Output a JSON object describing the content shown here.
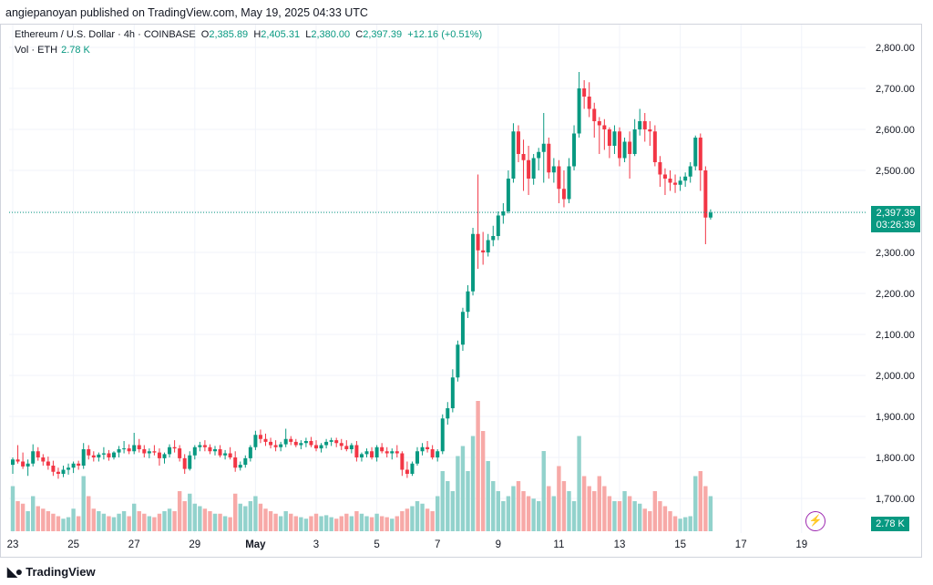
{
  "header": {
    "published_line": "angiepanoyan published on TradingView.com, May 19, 2025 04:33 UTC"
  },
  "legend": {
    "symbol": "Ethereum / U.S. Dollar · 4h · COINBASE",
    "o_label": "O",
    "o_value": "2,385.89",
    "h_label": "H",
    "h_value": "2,405.31",
    "l_label": "L",
    "l_value": "2,380.00",
    "c_label": "C",
    "c_value": "2,397.39",
    "change": "+12.16 (+0.51%)",
    "vol_label": "Vol · ETH",
    "vol_value": "2.78 K"
  },
  "price_tag": {
    "price": "2,397.39",
    "countdown": "03:26:39"
  },
  "volume_tag": "2.78 K",
  "footer": {
    "brand": "TradingView"
  },
  "colors": {
    "up": "#089981",
    "down": "#f23645",
    "vol_up": "#92d2cc",
    "vol_down": "#f7a9a7",
    "grid": "#f0f3fa"
  },
  "chart_data": {
    "type": "candlestick",
    "timeframe": "4h",
    "ylim": [
      1650,
      2850
    ],
    "y_ticks": [
      "2,800.00",
      "2,700.00",
      "2,600.00",
      "2,500.00",
      "2,400.00",
      "2,300.00",
      "2,200.00",
      "2,100.00",
      "2,000.00",
      "1,900.00",
      "1,800.00",
      "1,700.00"
    ],
    "y_tick_values": [
      2800,
      2700,
      2600,
      2500,
      2400,
      2300,
      2200,
      2100,
      2000,
      1900,
      1800,
      1700
    ],
    "x_ticks": [
      {
        "label": "23",
        "index": 0
      },
      {
        "label": "25",
        "index": 12
      },
      {
        "label": "27",
        "index": 24
      },
      {
        "label": "29",
        "index": 36
      },
      {
        "label": "May",
        "index": 48,
        "bold": true
      },
      {
        "label": "3",
        "index": 60
      },
      {
        "label": "5",
        "index": 72
      },
      {
        "label": "7",
        "index": 84
      },
      {
        "label": "9",
        "index": 96
      },
      {
        "label": "11",
        "index": 108
      },
      {
        "label": "13",
        "index": 120
      },
      {
        "label": "15",
        "index": 132
      },
      {
        "label": "17",
        "index": 144
      },
      {
        "label": "19",
        "index": 156
      }
    ],
    "last_price": 2397.39,
    "candles": [
      [
        1782,
        1800,
        1760,
        1795,
        90
      ],
      [
        1795,
        1830,
        1785,
        1790,
        60
      ],
      [
        1790,
        1812,
        1772,
        1778,
        55
      ],
      [
        1778,
        1795,
        1755,
        1785,
        40
      ],
      [
        1785,
        1832,
        1778,
        1815,
        70
      ],
      [
        1815,
        1825,
        1792,
        1800,
        50
      ],
      [
        1800,
        1808,
        1780,
        1790,
        45
      ],
      [
        1790,
        1802,
        1770,
        1780,
        40
      ],
      [
        1780,
        1792,
        1755,
        1765,
        35
      ],
      [
        1765,
        1775,
        1748,
        1760,
        30
      ],
      [
        1760,
        1780,
        1752,
        1770,
        25
      ],
      [
        1770,
        1785,
        1758,
        1775,
        28
      ],
      [
        1775,
        1790,
        1762,
        1785,
        45
      ],
      [
        1785,
        1792,
        1770,
        1780,
        30
      ],
      [
        1780,
        1835,
        1772,
        1820,
        110
      ],
      [
        1820,
        1830,
        1795,
        1805,
        70
      ],
      [
        1805,
        1815,
        1790,
        1800,
        45
      ],
      [
        1800,
        1812,
        1790,
        1807,
        40
      ],
      [
        1807,
        1825,
        1795,
        1810,
        35
      ],
      [
        1810,
        1818,
        1792,
        1800,
        30
      ],
      [
        1800,
        1815,
        1795,
        1812,
        28
      ],
      [
        1812,
        1828,
        1800,
        1820,
        35
      ],
      [
        1820,
        1840,
        1810,
        1822,
        40
      ],
      [
        1822,
        1832,
        1808,
        1815,
        30
      ],
      [
        1815,
        1860,
        1808,
        1830,
        55
      ],
      [
        1830,
        1845,
        1812,
        1820,
        40
      ],
      [
        1820,
        1830,
        1800,
        1810,
        35
      ],
      [
        1810,
        1822,
        1798,
        1815,
        30
      ],
      [
        1815,
        1830,
        1805,
        1812,
        28
      ],
      [
        1812,
        1822,
        1780,
        1798,
        35
      ],
      [
        1798,
        1812,
        1785,
        1808,
        40
      ],
      [
        1808,
        1832,
        1800,
        1825,
        45
      ],
      [
        1825,
        1842,
        1812,
        1822,
        40
      ],
      [
        1822,
        1830,
        1790,
        1798,
        80
      ],
      [
        1798,
        1808,
        1760,
        1772,
        60
      ],
      [
        1772,
        1815,
        1768,
        1805,
        75
      ],
      [
        1805,
        1830,
        1795,
        1825,
        55
      ],
      [
        1825,
        1838,
        1815,
        1830,
        50
      ],
      [
        1830,
        1842,
        1815,
        1825,
        45
      ],
      [
        1825,
        1832,
        1808,
        1815,
        40
      ],
      [
        1815,
        1828,
        1805,
        1820,
        35
      ],
      [
        1820,
        1830,
        1800,
        1805,
        35
      ],
      [
        1805,
        1818,
        1795,
        1810,
        30
      ],
      [
        1810,
        1825,
        1795,
        1800,
        28
      ],
      [
        1800,
        1815,
        1765,
        1775,
        75
      ],
      [
        1775,
        1790,
        1768,
        1782,
        55
      ],
      [
        1782,
        1805,
        1775,
        1798,
        50
      ],
      [
        1798,
        1830,
        1790,
        1825,
        60
      ],
      [
        1825,
        1865,
        1818,
        1855,
        70
      ],
      [
        1855,
        1868,
        1835,
        1845,
        55
      ],
      [
        1845,
        1858,
        1828,
        1838,
        45
      ],
      [
        1838,
        1848,
        1822,
        1830,
        40
      ],
      [
        1830,
        1842,
        1815,
        1825,
        35
      ],
      [
        1825,
        1838,
        1815,
        1832,
        30
      ],
      [
        1832,
        1870,
        1825,
        1845,
        40
      ],
      [
        1845,
        1852,
        1830,
        1838,
        35
      ],
      [
        1838,
        1845,
        1825,
        1830,
        30
      ],
      [
        1830,
        1842,
        1820,
        1835,
        28
      ],
      [
        1835,
        1848,
        1825,
        1840,
        25
      ],
      [
        1840,
        1850,
        1825,
        1830,
        30
      ],
      [
        1830,
        1842,
        1815,
        1822,
        35
      ],
      [
        1822,
        1835,
        1812,
        1830,
        30
      ],
      [
        1830,
        1845,
        1822,
        1838,
        32
      ],
      [
        1838,
        1848,
        1828,
        1842,
        28
      ],
      [
        1842,
        1848,
        1825,
        1835,
        25
      ],
      [
        1835,
        1845,
        1818,
        1828,
        30
      ],
      [
        1828,
        1842,
        1815,
        1820,
        35
      ],
      [
        1820,
        1835,
        1810,
        1830,
        30
      ],
      [
        1830,
        1840,
        1790,
        1800,
        40
      ],
      [
        1800,
        1812,
        1790,
        1808,
        35
      ],
      [
        1808,
        1822,
        1800,
        1815,
        30
      ],
      [
        1815,
        1825,
        1795,
        1800,
        28
      ],
      [
        1800,
        1830,
        1790,
        1825,
        35
      ],
      [
        1825,
        1835,
        1810,
        1815,
        30
      ],
      [
        1815,
        1825,
        1800,
        1810,
        28
      ],
      [
        1810,
        1822,
        1795,
        1815,
        25
      ],
      [
        1815,
        1830,
        1800,
        1810,
        30
      ],
      [
        1810,
        1815,
        1755,
        1770,
        40
      ],
      [
        1770,
        1790,
        1750,
        1760,
        45
      ],
      [
        1760,
        1790,
        1755,
        1785,
        50
      ],
      [
        1785,
        1825,
        1780,
        1815,
        60
      ],
      [
        1815,
        1835,
        1805,
        1825,
        55
      ],
      [
        1825,
        1840,
        1812,
        1820,
        45
      ],
      [
        1820,
        1830,
        1795,
        1800,
        40
      ],
      [
        1800,
        1820,
        1790,
        1815,
        70
      ],
      [
        1815,
        1905,
        1808,
        1895,
        120
      ],
      [
        1895,
        1935,
        1880,
        1920,
        100
      ],
      [
        1920,
        2015,
        1910,
        1995,
        80
      ],
      [
        1995,
        2085,
        1985,
        2075,
        150
      ],
      [
        2075,
        2165,
        2060,
        2155,
        170
      ],
      [
        2155,
        2220,
        2140,
        2205,
        120
      ],
      [
        2205,
        2360,
        2195,
        2345,
        190
      ],
      [
        2345,
        2490,
        2260,
        2305,
        260
      ],
      [
        2305,
        2350,
        2270,
        2300,
        200
      ],
      [
        2300,
        2345,
        2290,
        2330,
        140
      ],
      [
        2330,
        2365,
        2315,
        2340,
        100
      ],
      [
        2340,
        2400,
        2330,
        2390,
        80
      ],
      [
        2390,
        2420,
        2370,
        2400,
        60
      ],
      [
        2400,
        2500,
        2395,
        2480,
        70
      ],
      [
        2480,
        2615,
        2470,
        2595,
        90
      ],
      [
        2595,
        2610,
        2520,
        2540,
        100
      ],
      [
        2540,
        2575,
        2450,
        2525,
        80
      ],
      [
        2525,
        2560,
        2440,
        2480,
        70
      ],
      [
        2480,
        2540,
        2465,
        2530,
        65
      ],
      [
        2530,
        2555,
        2500,
        2545,
        60
      ],
      [
        2545,
        2640,
        2470,
        2565,
        160
      ],
      [
        2565,
        2580,
        2480,
        2495,
        90
      ],
      [
        2495,
        2530,
        2470,
        2510,
        70
      ],
      [
        2510,
        2525,
        2420,
        2455,
        130
      ],
      [
        2455,
        2500,
        2410,
        2430,
        100
      ],
      [
        2430,
        2530,
        2420,
        2510,
        80
      ],
      [
        2510,
        2610,
        2500,
        2590,
        60
      ],
      [
        2590,
        2740,
        2580,
        2700,
        190
      ],
      [
        2700,
        2720,
        2650,
        2680,
        110
      ],
      [
        2680,
        2715,
        2630,
        2650,
        90
      ],
      [
        2650,
        2665,
        2580,
        2620,
        80
      ],
      [
        2620,
        2630,
        2540,
        2610,
        110
      ],
      [
        2610,
        2625,
        2550,
        2600,
        90
      ],
      [
        2600,
        2605,
        2530,
        2560,
        70
      ],
      [
        2560,
        2610,
        2540,
        2595,
        60
      ],
      [
        2595,
        2605,
        2510,
        2530,
        60
      ],
      [
        2530,
        2580,
        2520,
        2570,
        80
      ],
      [
        2570,
        2595,
        2480,
        2540,
        70
      ],
      [
        2540,
        2625,
        2535,
        2600,
        60
      ],
      [
        2600,
        2650,
        2585,
        2620,
        55
      ],
      [
        2620,
        2640,
        2570,
        2600,
        45
      ],
      [
        2600,
        2620,
        2560,
        2595,
        40
      ],
      [
        2595,
        2610,
        2510,
        2520,
        80
      ],
      [
        2520,
        2535,
        2460,
        2490,
        60
      ],
      [
        2490,
        2505,
        2440,
        2480,
        50
      ],
      [
        2480,
        2500,
        2450,
        2470,
        40
      ],
      [
        2470,
        2490,
        2445,
        2465,
        30
      ],
      [
        2465,
        2485,
        2450,
        2475,
        25
      ],
      [
        2475,
        2495,
        2460,
        2485,
        28
      ],
      [
        2485,
        2520,
        2470,
        2510,
        30
      ],
      [
        2510,
        2585,
        2500,
        2580,
        110
      ],
      [
        2580,
        2590,
        2450,
        2500,
        120
      ],
      [
        2500,
        2510,
        2320,
        2385,
        90
      ],
      [
        2385,
        2405,
        2380,
        2397,
        70
      ]
    ]
  }
}
